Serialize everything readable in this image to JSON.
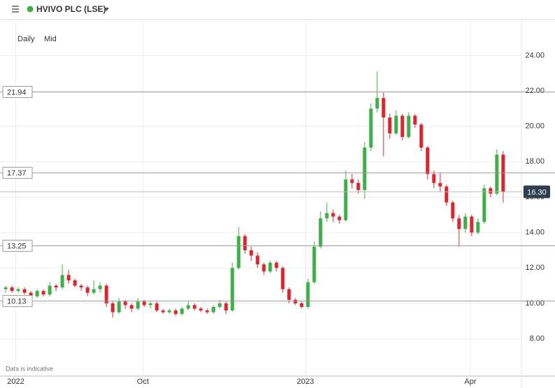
{
  "chart_data": {
    "type": "candlestick",
    "title": "HVIVO PLC (LSE)",
    "interval": "Daily",
    "price_type": "Mid",
    "note": "Data is indicative",
    "open": [
      10.8,
      10.9,
      10.7,
      10.8,
      10.6,
      10.4,
      10.7,
      10.5,
      11.0,
      10.9,
      11.6,
      11.3,
      11.0,
      10.9,
      10.6,
      10.8,
      11.0,
      10.0,
      9.5,
      10.1,
      9.9,
      9.7,
      10.1,
      9.9,
      10.0,
      9.6,
      9.5,
      9.6,
      9.4,
      9.7,
      9.9,
      9.7,
      9.6,
      9.5,
      9.8,
      10.0,
      9.6,
      12.0,
      13.8,
      13.0,
      12.7,
      12.2,
      11.8,
      12.3,
      12.0,
      10.8,
      10.2,
      10.0,
      9.8,
      11.2,
      13.2,
      14.8,
      15.1,
      14.9,
      14.7,
      17.0,
      16.8,
      16.4,
      18.8,
      21.0,
      21.6,
      20.5,
      19.6,
      20.6,
      19.4,
      20.6,
      20.1,
      18.8,
      17.3,
      16.8,
      16.6,
      15.7,
      14.8,
      14.2,
      14.9,
      14.0,
      14.6,
      16.5,
      16.2,
      18.4
    ],
    "high": [
      11.0,
      11.0,
      10.9,
      10.9,
      10.7,
      10.8,
      10.8,
      11.2,
      11.1,
      12.2,
      11.9,
      11.4,
      11.1,
      11.0,
      11.3,
      11.2,
      11.1,
      10.1,
      10.3,
      10.2,
      10.0,
      10.3,
      10.2,
      10.1,
      10.1,
      9.7,
      9.7,
      9.7,
      9.8,
      10.1,
      10.0,
      9.8,
      9.7,
      9.9,
      10.2,
      10.1,
      12.3,
      14.3,
      13.9,
      13.2,
      12.9,
      12.3,
      12.4,
      12.4,
      12.1,
      10.9,
      10.3,
      10.1,
      11.4,
      13.5,
      15.2,
      15.7,
      15.3,
      15.0,
      17.5,
      17.3,
      17.0,
      19.1,
      21.3,
      23.1,
      21.9,
      20.7,
      20.9,
      20.7,
      20.8,
      20.7,
      20.2,
      18.9,
      17.5,
      17.4,
      16.7,
      15.8,
      15.0,
      15.1,
      15.0,
      14.8,
      16.7,
      16.6,
      18.7,
      18.6
    ],
    "low": [
      10.6,
      10.6,
      10.6,
      10.5,
      10.2,
      10.3,
      10.4,
      10.4,
      10.7,
      10.8,
      11.1,
      10.9,
      10.7,
      10.4,
      10.5,
      10.6,
      9.8,
      9.2,
      9.4,
      9.7,
      9.5,
      9.6,
      9.8,
      9.7,
      9.5,
      9.4,
      9.4,
      9.3,
      9.3,
      9.6,
      9.6,
      9.5,
      9.4,
      9.4,
      9.7,
      9.4,
      9.5,
      11.9,
      12.8,
      12.4,
      12.0,
      11.6,
      11.7,
      11.8,
      10.6,
      10.0,
      9.9,
      9.7,
      9.7,
      11.1,
      13.1,
      14.6,
      14.6,
      14.5,
      14.6,
      16.5,
      16.2,
      15.9,
      18.6,
      20.8,
      18.3,
      19.3,
      19.5,
      19.2,
      19.3,
      19.9,
      18.6,
      17.0,
      16.5,
      16.3,
      15.5,
      14.6,
      13.2,
      14.0,
      13.8,
      13.9,
      14.5,
      16.0,
      16.1,
      15.7
    ],
    "close": [
      10.9,
      10.7,
      10.8,
      10.6,
      10.4,
      10.7,
      10.5,
      11.0,
      10.9,
      11.6,
      11.3,
      11.0,
      10.9,
      10.6,
      10.8,
      11.0,
      10.0,
      9.5,
      10.1,
      9.9,
      9.7,
      10.1,
      9.9,
      10.0,
      9.6,
      9.5,
      9.6,
      9.4,
      9.7,
      9.9,
      9.7,
      9.6,
      9.5,
      9.8,
      10.0,
      9.6,
      12.0,
      13.8,
      13.0,
      12.7,
      12.2,
      11.8,
      12.3,
      12.0,
      10.8,
      10.2,
      10.0,
      9.8,
      11.2,
      13.2,
      14.8,
      15.1,
      14.9,
      14.7,
      17.0,
      16.8,
      16.4,
      18.8,
      21.0,
      21.6,
      20.5,
      19.6,
      20.6,
      19.4,
      20.6,
      20.1,
      18.8,
      17.3,
      16.8,
      16.6,
      15.7,
      14.8,
      14.2,
      14.9,
      14.0,
      14.6,
      16.5,
      16.2,
      18.4,
      16.3
    ],
    "up_color": "#3fae49",
    "down_color": "#d9262e",
    "ylim": [
      5.89,
      26.03
    ],
    "yticks": [
      {
        "value": 8,
        "label": "8.00"
      },
      {
        "value": 10,
        "label": "10.00"
      },
      {
        "value": 12,
        "label": "12.00"
      },
      {
        "value": 14,
        "label": "14.00"
      },
      {
        "value": 16,
        "label": "16.00"
      },
      {
        "value": 18,
        "label": "18.00"
      },
      {
        "value": 20,
        "label": "20.00"
      },
      {
        "value": 22,
        "label": "22.00"
      },
      {
        "value": 24,
        "label": "24.00"
      }
    ],
    "xlim": [
      -0.9,
      81.9
    ],
    "xticks": [
      {
        "value": 1.6,
        "label": "2022"
      },
      {
        "value": 21.8,
        "label": "Oct"
      },
      {
        "value": 47.6,
        "label": "2023"
      },
      {
        "value": 73.8,
        "label": "Apr"
      }
    ],
    "levels": [
      21.94,
      17.37,
      13.25,
      10.13
    ],
    "last_price": {
      "value": 16.3,
      "label": "16.30"
    }
  }
}
